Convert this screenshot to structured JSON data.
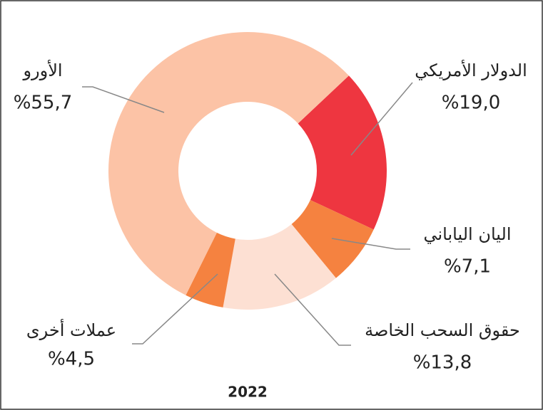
{
  "chart_data": {
    "type": "donut",
    "title": "2022",
    "categories": [
      "الدولار الأمريكي",
      "اليان الياباني",
      "حقوق السحب الخاصة",
      "عملات أخرى",
      "الأورو"
    ],
    "values": [
      19.0,
      7.1,
      13.8,
      4.5,
      55.7
    ],
    "value_labels": [
      "%19,0",
      "%7,1",
      "%13,8",
      "%4,5",
      "%55,7"
    ],
    "colors": [
      "#ee3640",
      "#f58240",
      "#fde0d3",
      "#f58240",
      "#fcc3a6"
    ]
  }
}
